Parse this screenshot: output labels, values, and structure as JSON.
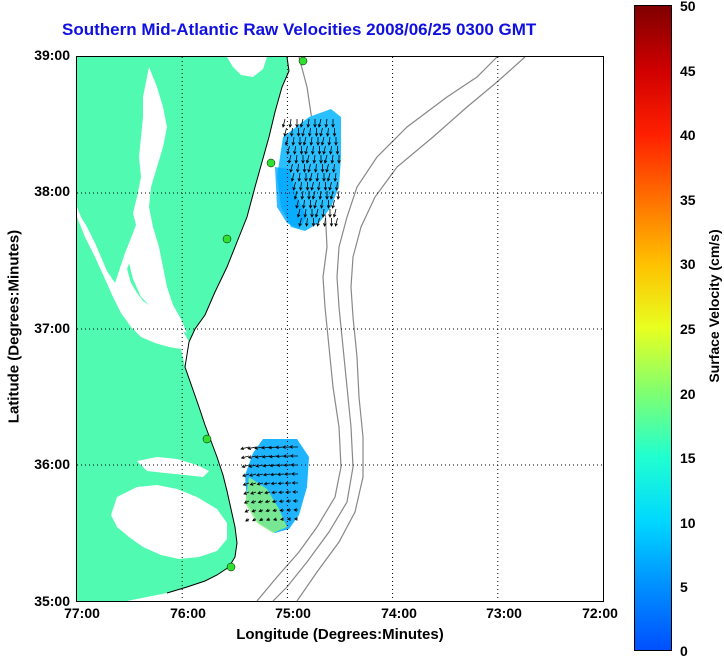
{
  "title": "Southern Mid-Atlantic Raw Velocities 2008/06/25 0300 GMT",
  "xlabel": "Longitude (Degrees:Minutes)",
  "ylabel": "Latitude (Degrees:Minutes)",
  "colorbar_label": "Surface Velocity (cm/s)",
  "chart_data": {
    "type": "map",
    "x_ticks": [
      "77:00",
      "76:00",
      "75:00",
      "74:00",
      "73:00",
      "72:00"
    ],
    "y_ticks": [
      "39:00",
      "38:00",
      "37:00",
      "36:00",
      "35:00"
    ],
    "colorbar_ticks": [
      "50",
      "45",
      "40",
      "35",
      "30",
      "25",
      "20",
      "15",
      "10",
      "5",
      "0"
    ],
    "colorbar_range": [
      0,
      50
    ],
    "lon_range": [
      -77,
      -72
    ],
    "lat_range": [
      35,
      39
    ],
    "colors": {
      "land": "#50fab0",
      "title": "#1010e0",
      "contour": "#888888"
    }
  }
}
